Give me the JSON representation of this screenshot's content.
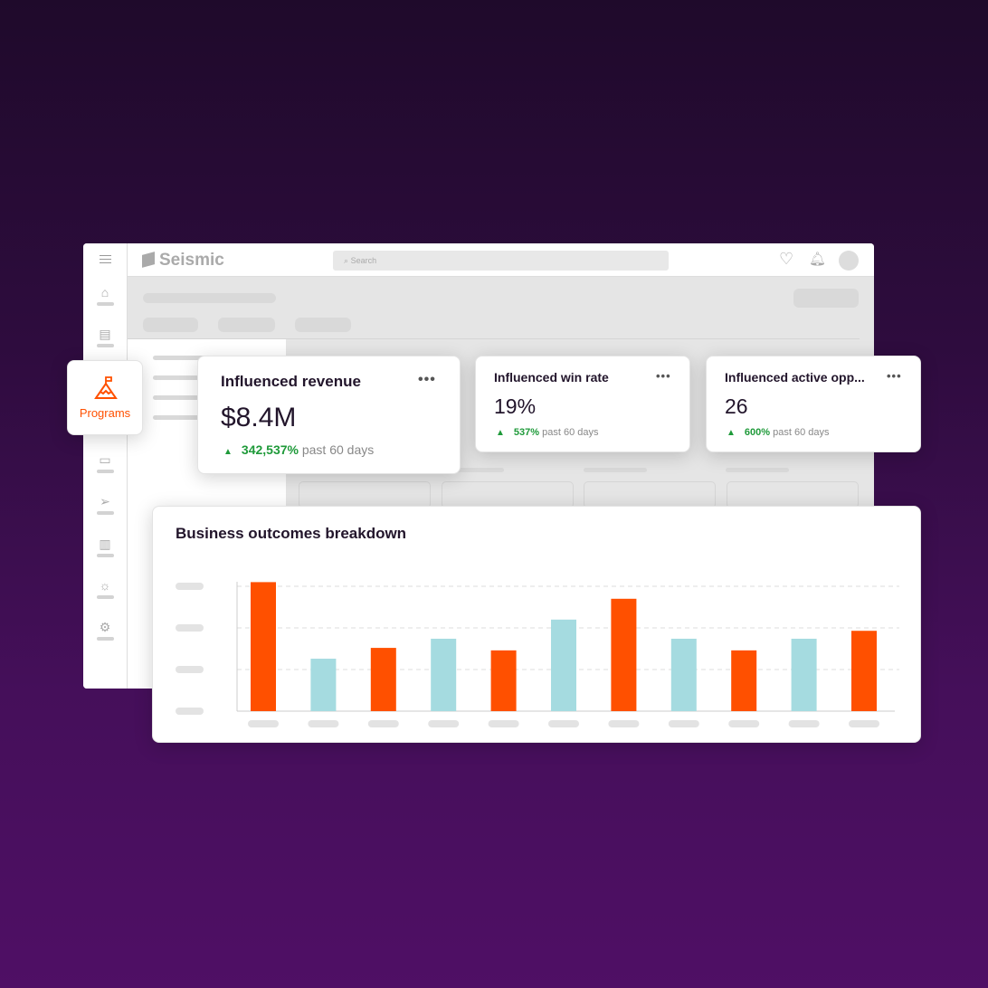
{
  "app": {
    "logo": "Seismic",
    "search_placeholder": "Search"
  },
  "sidebar": {
    "active_item": "Programs",
    "icons": [
      "home-icon",
      "notes-icon",
      "programs-icon",
      "folder-icon",
      "send-icon",
      "analytics-icon",
      "ideas-icon",
      "settings-icon"
    ]
  },
  "kpis": [
    {
      "title": "Influenced revenue",
      "value": "$8.4M",
      "change": "342,537%",
      "period": "past 60 days"
    },
    {
      "title": "Influenced win rate",
      "value": "19%",
      "change": "537%",
      "period": "past 60 days"
    },
    {
      "title": "Influenced active opp...",
      "value": "26",
      "change": "600%",
      "period": "past 60 days"
    }
  ],
  "colors": {
    "accent": "#ff5000",
    "teal": "#a5dbe0",
    "positive": "#1f9a3a",
    "title": "#22152b"
  },
  "chart_data": {
    "type": "bar",
    "title": "Business outcomes breakdown",
    "categories": [
      "",
      "",
      "",
      "",
      "",
      "",
      "",
      "",
      "",
      "",
      ""
    ],
    "values": [
      3.1,
      1.26,
      1.52,
      1.74,
      1.46,
      2.2,
      2.7,
      1.74,
      1.46,
      1.74,
      1.93
    ],
    "bar_colors": [
      "#ff5000",
      "#a5dbe0",
      "#ff5000",
      "#a5dbe0",
      "#ff5000",
      "#a5dbe0",
      "#ff5000",
      "#a5dbe0",
      "#ff5000",
      "#a5dbe0",
      "#ff5000"
    ],
    "ylim": [
      0,
      3
    ],
    "grid": true,
    "tick_labels_placeholder": true
  }
}
